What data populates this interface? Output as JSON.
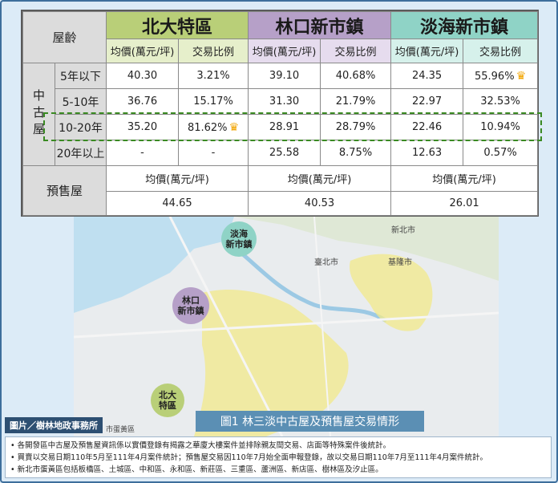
{
  "header": {
    "age_label": "屋齡",
    "groups": [
      {
        "name": "北大特區",
        "col_a": "均價(萬元/坪)",
        "col_b": "交易比例"
      },
      {
        "name": "林口新市鎮",
        "col_a": "均價(萬元/坪)",
        "col_b": "交易比例"
      },
      {
        "name": "淡海新市鎮",
        "col_a": "均價(萬元/坪)",
        "col_b": "交易比例"
      }
    ]
  },
  "used_label": "中古屋",
  "rows": [
    {
      "age": "5年以下",
      "v": [
        "40.30",
        "3.21%",
        "39.10",
        "40.68%",
        "24.35",
        "55.96%"
      ],
      "crown": [
        false,
        false,
        true
      ]
    },
    {
      "age": "5-10年",
      "v": [
        "36.76",
        "15.17%",
        "31.30",
        "21.79%",
        "22.97",
        "32.53%"
      ],
      "crown": [
        false,
        false,
        false
      ]
    },
    {
      "age": "10-20年",
      "v": [
        "35.20",
        "81.62%",
        "28.91",
        "28.79%",
        "22.46",
        "10.94%"
      ],
      "crown": [
        true,
        false,
        false
      ]
    },
    {
      "age": "20年以上",
      "v": [
        "-",
        "-",
        "25.58",
        "8.75%",
        "12.63",
        "0.57%"
      ],
      "crown": [
        false,
        false,
        false
      ]
    }
  ],
  "presale": {
    "label": "預售屋",
    "col": "均價(萬元/坪)",
    "values": [
      "44.65",
      "40.53",
      "26.01"
    ]
  },
  "map": {
    "bubbles": {
      "danhai": "淡海\n新市鎮",
      "linkou": "林口\n新市鎮",
      "beida": "北大\n特區"
    },
    "places": {
      "newtaipei": "新北市",
      "taipei": "臺北市",
      "keelung": "基隆市",
      "small": "市蛋黃區"
    }
  },
  "caption": "圖1  林三淡中古屋及預售屋交易情形",
  "credit": "圖片／樹林地政事務所",
  "notes": [
    "• 各開發區中古屋及預售屋資訊係以實價登錄有揭露之華廈大樓案件並排除親友間交易、店面等特殊案件後統計。",
    "• 買賣以交易日期110年5月至111年4月案件統計；預售屋交易因110年7月始全面申報登錄，故以交易日期110年7月至111年4月案件統計。",
    "• 新北市蛋黃區包括板橋區、土城區、中和區、永和區、新莊區、三重區、蘆洲區、新店區、樹林區及汐止區。"
  ],
  "colors": {
    "beida": "#b9cf78",
    "linkou": "#b6a0c8",
    "danhai": "#8fd3c6",
    "crown": "#f2a400",
    "highlight": "#3a8a22"
  },
  "chart_data": {
    "type": "table",
    "columns": [
      "北大特區 均價(萬元/坪)",
      "北大特區 交易比例",
      "林口新市鎮 均價(萬元/坪)",
      "林口新市鎮 交易比例",
      "淡海新市鎮 均價(萬元/坪)",
      "淡海新市鎮 交易比例"
    ],
    "rows": [
      {
        "category": "中古屋",
        "age": "5年以下",
        "values": [
          40.3,
          3.21,
          39.1,
          40.68,
          24.35,
          55.96
        ]
      },
      {
        "category": "中古屋",
        "age": "5-10年",
        "values": [
          36.76,
          15.17,
          31.3,
          21.79,
          22.97,
          32.53
        ]
      },
      {
        "category": "中古屋",
        "age": "10-20年",
        "values": [
          35.2,
          81.62,
          28.91,
          28.79,
          22.46,
          10.94
        ]
      },
      {
        "category": "中古屋",
        "age": "20年以上",
        "values": [
          null,
          null,
          25.58,
          8.75,
          12.63,
          0.57
        ]
      },
      {
        "category": "預售屋",
        "age": "",
        "values": [
          44.65,
          null,
          40.53,
          null,
          26.01,
          null
        ]
      }
    ]
  }
}
